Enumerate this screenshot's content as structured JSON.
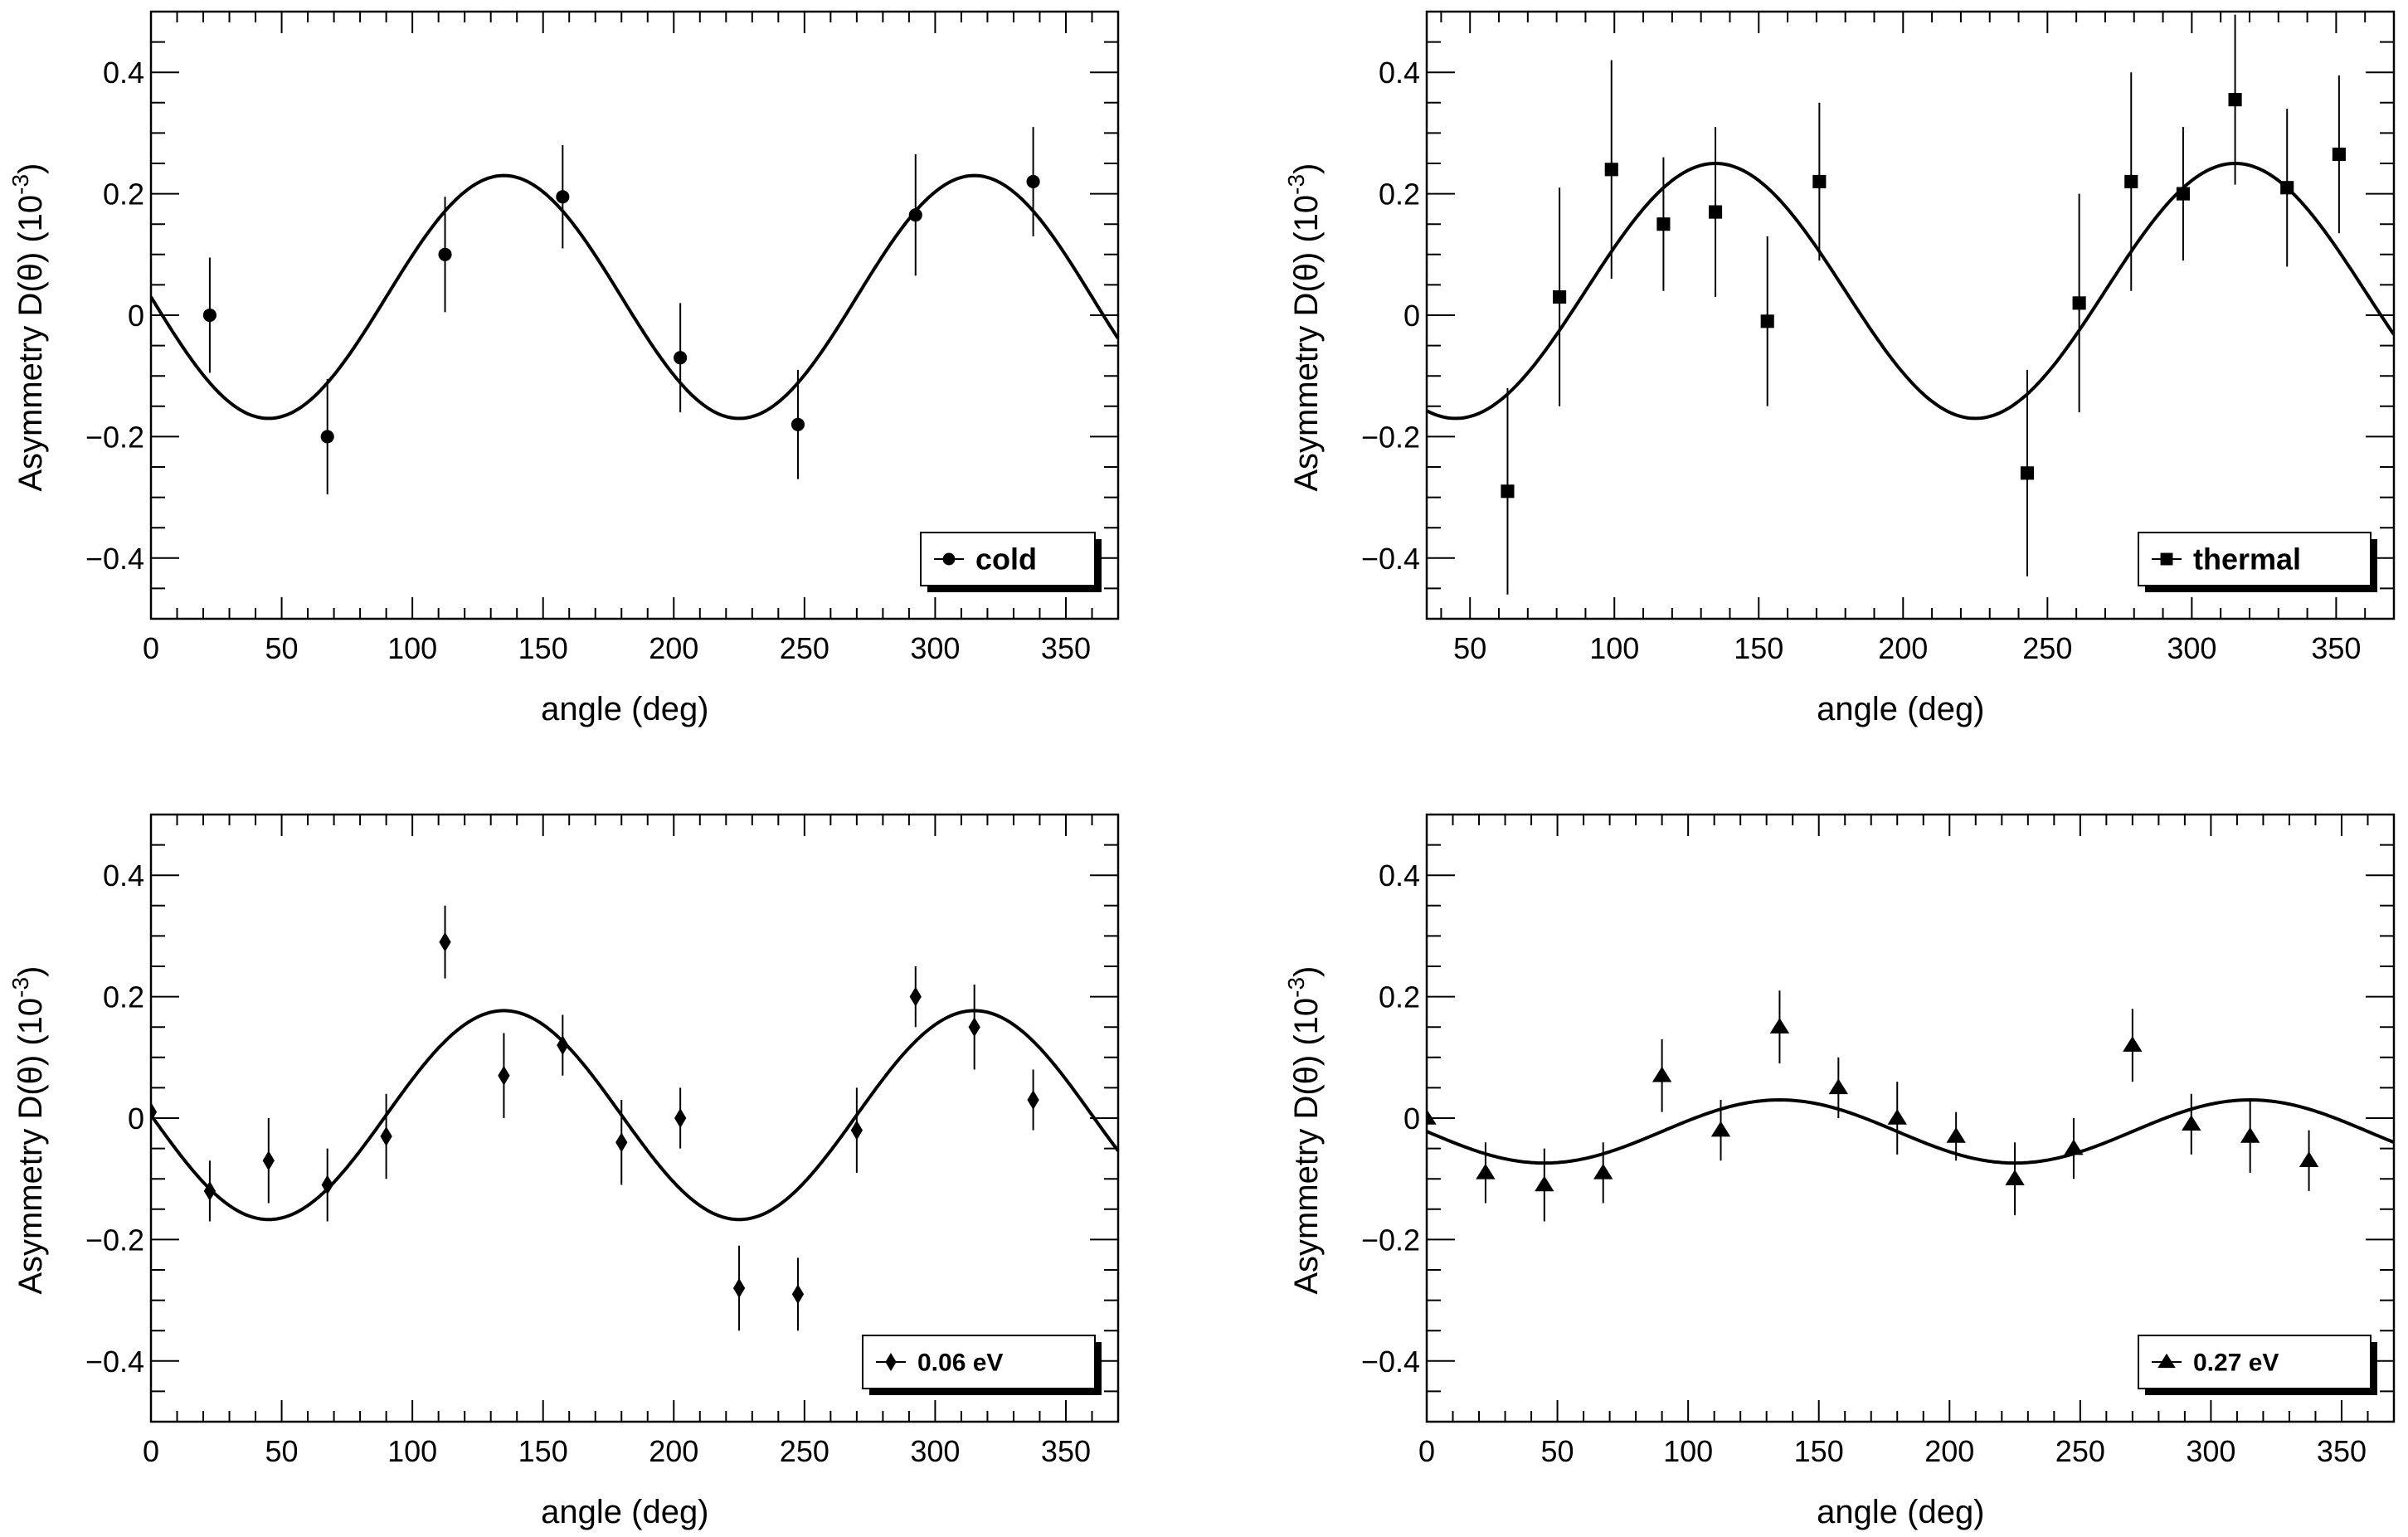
{
  "chart_data": [
    {
      "type": "scatter",
      "panel": "top-left",
      "xlabel": "angle (deg)",
      "ylabel": "Asymmetry D(θ) (10",
      "ylabel_sup": "-3",
      "ylabel_close": ")",
      "xlim": [
        0,
        370
      ],
      "ylim": [
        -0.5,
        0.5
      ],
      "xticks": [
        0,
        50,
        100,
        150,
        200,
        250,
        300,
        350
      ],
      "xtick_labels": [
        "0",
        "50",
        "100",
        "150",
        "200",
        "250",
        "300",
        "350"
      ],
      "yticks": [
        -0.4,
        -0.2,
        0,
        0.2,
        0.4
      ],
      "ytick_labels": [
        "−0.4",
        "−0.2",
        "0",
        "0.2",
        "0.4"
      ],
      "legend": {
        "label": "cold",
        "marker": "circle",
        "placement": "bottom-right"
      },
      "fit": {
        "amplitude": 0.2,
        "offset": 0.03,
        "period": 180,
        "phase": 90
      },
      "series": [
        {
          "marker": "circle",
          "x": [
            22.5,
            67.5,
            112.5,
            157.5,
            202.5,
            247.5,
            292.5,
            337.5
          ],
          "y": [
            0.0,
            -0.2,
            0.1,
            0.195,
            -0.07,
            -0.18,
            0.165,
            0.22
          ],
          "err": [
            0.095,
            0.095,
            0.095,
            0.085,
            0.09,
            0.09,
            0.1,
            0.09
          ]
        }
      ]
    },
    {
      "type": "scatter",
      "panel": "top-right",
      "xlabel": "angle (deg)",
      "ylabel": "Asymmetry D(θ) (10",
      "ylabel_sup": "-3",
      "ylabel_close": ")",
      "xlim": [
        35,
        370
      ],
      "ylim": [
        -0.5,
        0.5
      ],
      "xticks": [
        50,
        100,
        150,
        200,
        250,
        300,
        350
      ],
      "xtick_labels": [
        "50",
        "100",
        "150",
        "200",
        "250",
        "300",
        "350"
      ],
      "yticks": [
        -0.4,
        -0.2,
        0,
        0.2,
        0.4
      ],
      "ytick_labels": [
        "−0.4",
        "−0.2",
        "0",
        "0.2",
        "0.4"
      ],
      "legend": {
        "label": "thermal",
        "marker": "square",
        "placement": "bottom-right"
      },
      "fit": {
        "amplitude": 0.21,
        "offset": 0.04,
        "period": 180,
        "phase": 90
      },
      "series": [
        {
          "marker": "square",
          "x": [
            63,
            81,
            99,
            117,
            135,
            153,
            171,
            243,
            261,
            279,
            297,
            315,
            333,
            351
          ],
          "y": [
            -0.29,
            0.03,
            0.24,
            0.15,
            0.17,
            -0.01,
            0.22,
            -0.26,
            0.02,
            0.22,
            0.2,
            0.355,
            0.21,
            0.265
          ],
          "err": [
            0.17,
            0.18,
            0.18,
            0.11,
            0.14,
            0.14,
            0.13,
            0.17,
            0.18,
            0.18,
            0.11,
            0.14,
            0.13,
            0.13
          ]
        }
      ]
    },
    {
      "type": "scatter",
      "panel": "bottom-left",
      "xlabel": "angle (deg)",
      "ylabel": "Asymmetry D(θ) (10",
      "ylabel_sup": "-3",
      "ylabel_close": ")",
      "xlim": [
        0,
        370
      ],
      "ylim": [
        -0.5,
        0.5
      ],
      "xticks": [
        0,
        50,
        100,
        150,
        200,
        250,
        300,
        350
      ],
      "xtick_labels": [
        "0",
        "50",
        "100",
        "150",
        "200",
        "250",
        "300",
        "350"
      ],
      "yticks": [
        -0.4,
        -0.2,
        0,
        0.2,
        0.4
      ],
      "ytick_labels": [
        "−0.4",
        "−0.2",
        "0",
        "0.2",
        "0.4"
      ],
      "legend": {
        "label": "0.06 eV",
        "marker": "diamond",
        "placement": "bottom-right"
      },
      "fit": {
        "amplitude": 0.172,
        "offset": 0.005,
        "period": 180,
        "phase": 90
      },
      "series": [
        {
          "marker": "diamond",
          "x": [
            0,
            22.5,
            45,
            67.5,
            90,
            112.5,
            135,
            157.5,
            180,
            202.5,
            225,
            247.5,
            270,
            292.5,
            315,
            337.5
          ],
          "y": [
            0.01,
            -0.12,
            -0.07,
            -0.11,
            -0.03,
            0.29,
            0.07,
            0.12,
            -0.04,
            0.0,
            -0.28,
            -0.29,
            -0.02,
            0.2,
            0.15,
            0.03
          ],
          "err": [
            0.02,
            0.05,
            0.07,
            0.06,
            0.07,
            0.06,
            0.07,
            0.05,
            0.07,
            0.05,
            0.07,
            0.06,
            0.07,
            0.05,
            0.07,
            0.05
          ]
        }
      ]
    },
    {
      "type": "scatter",
      "panel": "bottom-right",
      "xlabel": "angle (deg)",
      "ylabel": "Asymmetry D(θ) (10",
      "ylabel_sup": "-3",
      "ylabel_close": ")",
      "xlim": [
        0,
        370
      ],
      "ylim": [
        -0.5,
        0.5
      ],
      "xticks": [
        0,
        50,
        100,
        150,
        200,
        250,
        300,
        350
      ],
      "xtick_labels": [
        "0",
        "50",
        "100",
        "150",
        "200",
        "250",
        "300",
        "350"
      ],
      "yticks": [
        -0.4,
        -0.2,
        0,
        0.2,
        0.4
      ],
      "ytick_labels": [
        "−0.4",
        "−0.2",
        "0",
        "0.2",
        "0.4"
      ],
      "legend": {
        "label": "0.27 eV",
        "marker": "triangle",
        "placement": "bottom-right"
      },
      "fit": {
        "amplitude": 0.052,
        "offset": -0.022,
        "period": 180,
        "phase": 90
      },
      "series": [
        {
          "marker": "triangle",
          "x": [
            0,
            22.5,
            45,
            67.5,
            90,
            112.5,
            135,
            157.5,
            180,
            202.5,
            225,
            247.5,
            270,
            292.5,
            315,
            337.5
          ],
          "y": [
            0.0,
            -0.09,
            -0.11,
            -0.09,
            0.07,
            -0.02,
            0.15,
            0.05,
            0.0,
            -0.03,
            -0.1,
            -0.05,
            0.12,
            -0.01,
            -0.03,
            -0.07
          ],
          "err": [
            0.03,
            0.05,
            0.06,
            0.05,
            0.06,
            0.05,
            0.06,
            0.05,
            0.06,
            0.04,
            0.06,
            0.05,
            0.06,
            0.05,
            0.06,
            0.05
          ]
        }
      ]
    }
  ]
}
